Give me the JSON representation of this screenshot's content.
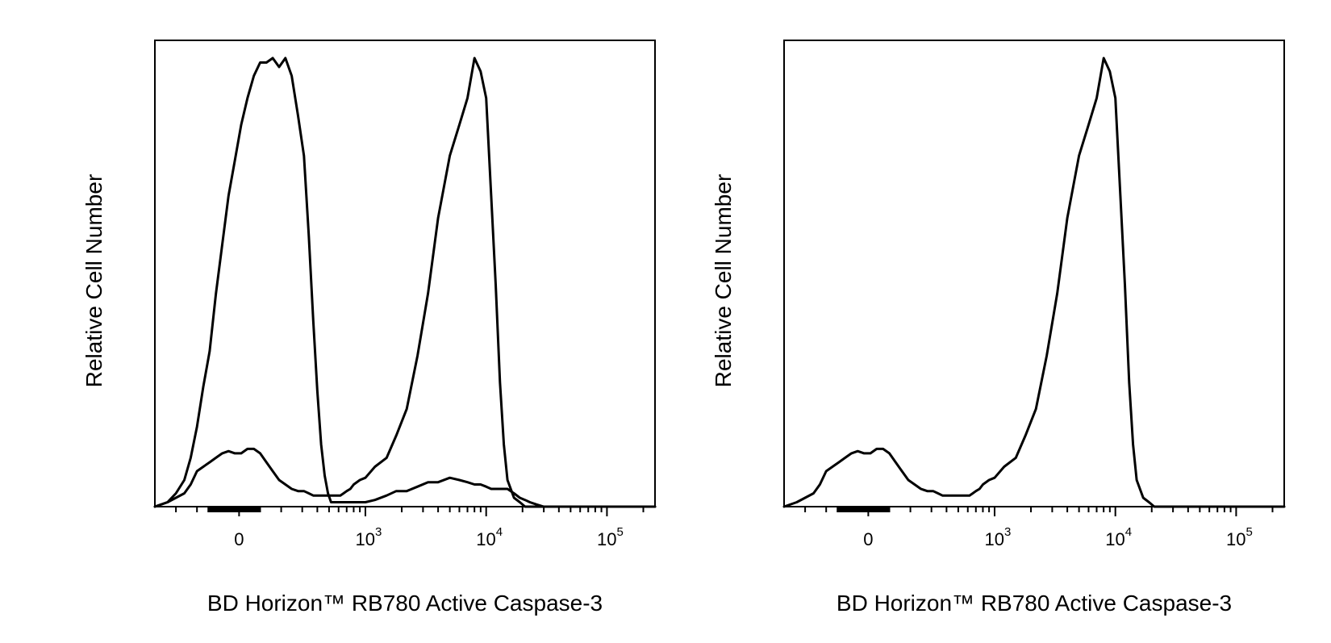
{
  "chart_data": [
    {
      "type": "line",
      "scale": "biexponential",
      "xlabel": "BD Horizon™ RB780  Active Caspase-3",
      "ylabel": "Relative Cell Number",
      "xlim": [
        -400,
        250000
      ],
      "ylim": [
        0,
        105
      ],
      "grid": false,
      "ticks": [
        {
          "value": 0,
          "label": "0",
          "exp": ""
        },
        {
          "value": 1000,
          "label": "10",
          "exp": "3"
        },
        {
          "value": 10000,
          "label": "10",
          "exp": "4"
        },
        {
          "value": 100000,
          "label": "10",
          "exp": "5"
        }
      ],
      "x": [
        -400,
        -340,
        -300,
        -260,
        -230,
        -200,
        -170,
        -140,
        -110,
        -80,
        -50,
        -20,
        10,
        40,
        70,
        100,
        130,
        160,
        190,
        220,
        250,
        280,
        310,
        340,
        370,
        400,
        430,
        460,
        490,
        520,
        550,
        580,
        620,
        660,
        700,
        750,
        800,
        900,
        1000,
        1200,
        1500,
        1800,
        2200,
        2700,
        3300,
        4000,
        5000,
        6000,
        7000,
        8000,
        9000,
        10000,
        11000,
        12000,
        13000,
        14000,
        15000,
        17000,
        19000,
        21000,
        23000,
        26000,
        30000,
        40000,
        60000,
        100000,
        150000,
        250000
      ],
      "series": [
        {
          "y": [
            0,
            1,
            3,
            6,
            11,
            18,
            27,
            35,
            48,
            59,
            70,
            78,
            86,
            92,
            97,
            100,
            100,
            101,
            99,
            101,
            97,
            88,
            79,
            61,
            42,
            26,
            14,
            7,
            3,
            1,
            1,
            1,
            1,
            1,
            1,
            1,
            1,
            1,
            1,
            1.5,
            2.5,
            3.5,
            3.5,
            4.5,
            5.5,
            5.5,
            6.5,
            6,
            5.5,
            5,
            5,
            4.5,
            4,
            4,
            4,
            4,
            4,
            3,
            2,
            1.5,
            1,
            0.5,
            0,
            0,
            0,
            0,
            0,
            0
          ]
        },
        {
          "y": [
            0,
            1,
            2,
            3,
            5,
            8,
            9,
            10,
            11,
            12,
            12.5,
            12,
            12,
            13,
            13,
            12,
            10,
            8,
            6,
            5,
            4,
            3.5,
            3.5,
            3,
            2.5,
            2.5,
            2.5,
            2.5,
            2.5,
            2.5,
            2.5,
            2.5,
            2.5,
            3,
            3.5,
            4,
            5,
            6,
            6.5,
            9,
            11,
            16,
            22,
            34,
            48,
            65,
            79,
            86,
            92,
            101,
            98,
            92,
            70,
            50,
            28,
            14,
            6,
            2,
            1,
            0,
            0,
            0,
            0,
            0,
            0,
            0,
            0,
            0
          ]
        }
      ]
    },
    {
      "type": "line",
      "scale": "biexponential",
      "xlabel": "BD Horizon™ RB780  Active Caspase-3",
      "ylabel": "Relative Cell Number",
      "xlim": [
        -400,
        250000
      ],
      "ylim": [
        0,
        105
      ],
      "grid": false,
      "ticks": [
        {
          "value": 0,
          "label": "0",
          "exp": ""
        },
        {
          "value": 1000,
          "label": "10",
          "exp": "3"
        },
        {
          "value": 10000,
          "label": "10",
          "exp": "4"
        },
        {
          "value": 100000,
          "label": "10",
          "exp": "5"
        }
      ],
      "x": [
        -400,
        -340,
        -300,
        -260,
        -230,
        -200,
        -170,
        -140,
        -110,
        -80,
        -50,
        -20,
        10,
        40,
        70,
        100,
        130,
        160,
        190,
        220,
        250,
        280,
        310,
        340,
        370,
        400,
        430,
        460,
        490,
        520,
        550,
        580,
        620,
        660,
        700,
        750,
        800,
        900,
        1000,
        1200,
        1500,
        1800,
        2200,
        2700,
        3300,
        4000,
        5000,
        6000,
        7000,
        8000,
        9000,
        10000,
        11000,
        12000,
        13000,
        14000,
        15000,
        17000,
        19000,
        21000,
        23000,
        26000,
        30000,
        40000,
        60000,
        100000,
        150000,
        250000
      ],
      "series": [
        {
          "y": [
            0,
            1,
            2,
            3,
            5,
            8,
            9,
            10,
            11,
            12,
            12.5,
            12,
            12,
            13,
            13,
            12,
            10,
            8,
            6,
            5,
            4,
            3.5,
            3.5,
            3,
            2.5,
            2.5,
            2.5,
            2.5,
            2.5,
            2.5,
            2.5,
            2.5,
            2.5,
            3,
            3.5,
            4,
            5,
            6,
            6.5,
            9,
            11,
            16,
            22,
            34,
            48,
            65,
            79,
            86,
            92,
            101,
            98,
            92,
            70,
            50,
            28,
            14,
            6,
            2,
            1,
            0,
            0,
            0,
            0,
            0,
            0,
            0,
            0,
            0
          ]
        }
      ]
    }
  ]
}
